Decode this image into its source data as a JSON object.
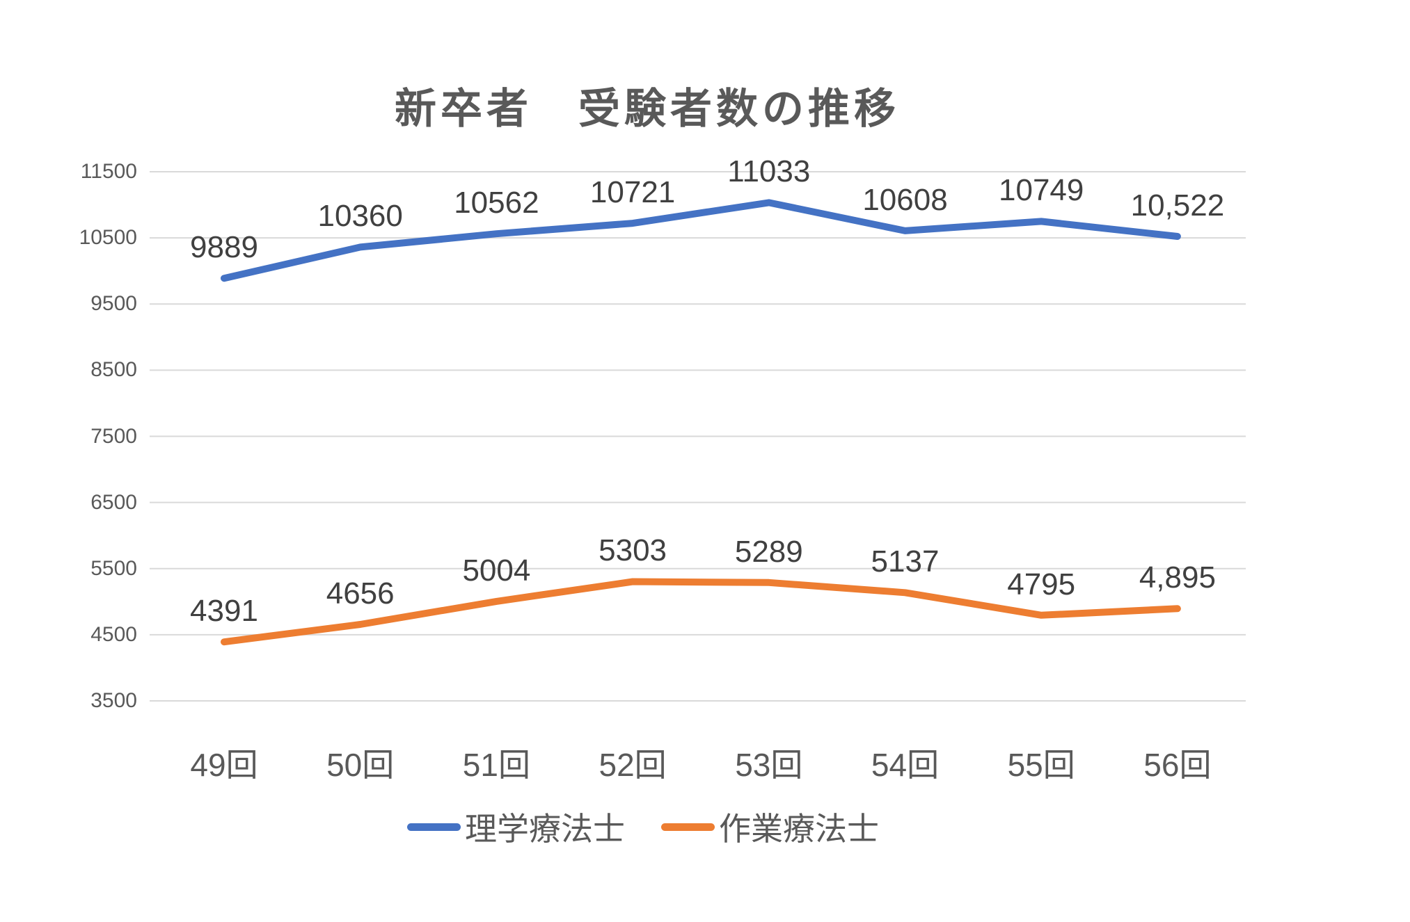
{
  "title": "新卒者　受験者数の推移",
  "colors": {
    "background": "#ffffff",
    "grid": "#d9d9d9",
    "axis_text": "#595959",
    "title_text": "#595959",
    "data_label_text": "#404040",
    "series_blue": "#4472c4",
    "series_orange": "#ed7d31"
  },
  "chart_data": {
    "type": "line",
    "title": "新卒者　受験者数の推移",
    "categories": [
      "49回",
      "50回",
      "51回",
      "52回",
      "53回",
      "54回",
      "55回",
      "56回"
    ],
    "series": [
      {
        "name": "理学療法士",
        "color": "#4472c4",
        "values": [
          9889,
          10360,
          10562,
          10721,
          11033,
          10608,
          10749,
          10522
        ],
        "labels": [
          "9889",
          "10360",
          "10562",
          "10721",
          "11033",
          "10608",
          "10749",
          "10,522"
        ]
      },
      {
        "name": "作業療法士",
        "color": "#ed7d31",
        "values": [
          4391,
          4656,
          5004,
          5303,
          5289,
          5137,
          4795,
          4895
        ],
        "labels": [
          "4391",
          "4656",
          "5004",
          "5303",
          "5289",
          "5137",
          "4795",
          "4,895"
        ]
      }
    ],
    "xlabel": "",
    "ylabel": "",
    "ylim": [
      3500,
      11500
    ],
    "yticks": [
      11500,
      10500,
      9500,
      8500,
      7500,
      6500,
      5500,
      4500,
      3500
    ],
    "grid": "horizontal",
    "legend_position": "bottom",
    "data_labels": "above-points"
  }
}
